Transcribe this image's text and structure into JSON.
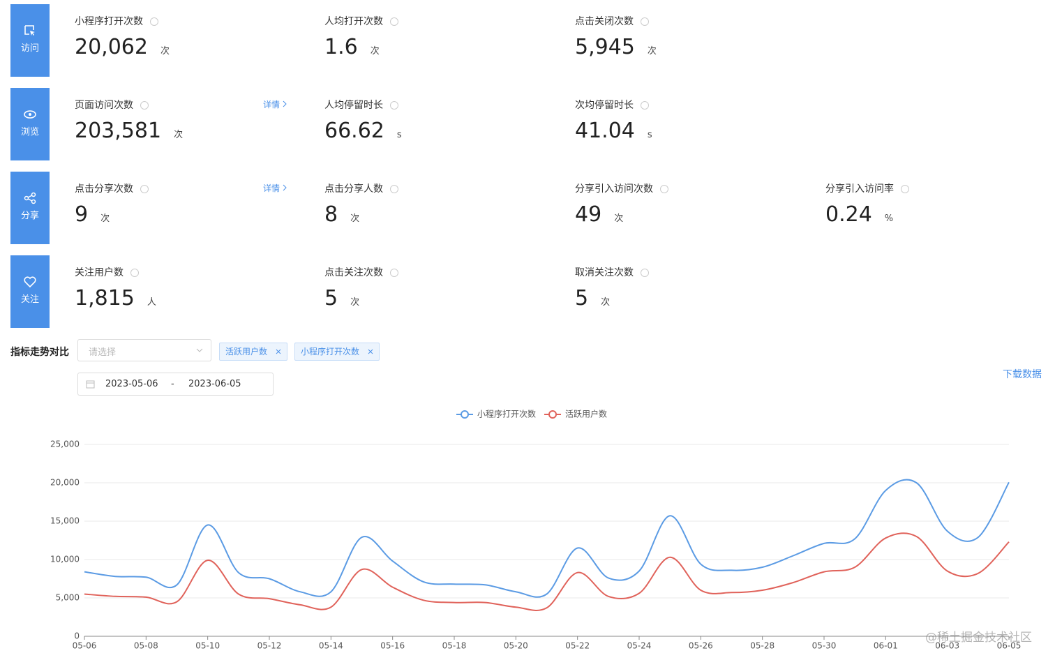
{
  "sections": [
    {
      "name": "访问",
      "metrics": [
        {
          "label": "小程序打开次数",
          "value": "20,062",
          "unit": "次"
        },
        {
          "label": "人均打开次数",
          "value": "1.6",
          "unit": "次"
        },
        {
          "label": "点击关闭次数",
          "value": "5,945",
          "unit": "次"
        }
      ]
    },
    {
      "name": "浏览",
      "metrics": [
        {
          "label": "页面访问次数",
          "value": "203,581",
          "unit": "次",
          "detail": "详情"
        },
        {
          "label": "人均停留时长",
          "value": "66.62",
          "unit": "s"
        },
        {
          "label": "次均停留时长",
          "value": "41.04",
          "unit": "s"
        }
      ]
    },
    {
      "name": "分享",
      "metrics": [
        {
          "label": "点击分享次数",
          "value": "9",
          "unit": "次",
          "detail": "详情"
        },
        {
          "label": "点击分享人数",
          "value": "8",
          "unit": "次"
        },
        {
          "label": "分享引入访问次数",
          "value": "49",
          "unit": "次"
        },
        {
          "label": "分享引入访问率",
          "value": "0.24",
          "unit": "%"
        }
      ]
    },
    {
      "name": "关注",
      "metrics": [
        {
          "label": "关注用户数",
          "value": "1,815",
          "unit": "人"
        },
        {
          "label": "点击关注次数",
          "value": "5",
          "unit": "次"
        },
        {
          "label": "取消关注次数",
          "value": "5",
          "unit": "次"
        }
      ]
    }
  ],
  "filter": {
    "label": "指标走势对比",
    "placeholder": "请选择",
    "tags": [
      "活跃用户数",
      "小程序打开次数"
    ],
    "date_start": "2023-05-06",
    "date_separator": "-",
    "date_end": "2023-06-05",
    "download": "下载数据"
  },
  "watermark": "@稀土掘金技术社区",
  "chart_data": {
    "type": "line",
    "categories": [
      "05-06",
      null,
      "05-08",
      null,
      "05-10",
      null,
      "05-12",
      null,
      "05-14",
      null,
      "05-16",
      null,
      "05-18",
      null,
      "05-20",
      null,
      "05-22",
      null,
      "05-24",
      null,
      "05-26",
      null,
      "05-28",
      null,
      "05-30",
      null,
      "06-01",
      null,
      "06-03",
      null,
      "06-05"
    ],
    "series": [
      {
        "name": "小程序打开次数",
        "color": "#5b9be4",
        "values": [
          8400,
          7800,
          7700,
          6700,
          14500,
          8300,
          7500,
          5800,
          5800,
          12900,
          9800,
          7100,
          6800,
          6700,
          5800,
          5500,
          11500,
          7600,
          8500,
          15700,
          9400,
          8600,
          9000,
          10500,
          12100,
          12700,
          19000,
          20000,
          13700,
          12900,
          20062
        ]
      },
      {
        "name": "活跃用户数",
        "color": "#e0625a",
        "values": [
          5500,
          5200,
          5100,
          4500,
          9900,
          5500,
          4900,
          4100,
          3800,
          8700,
          6400,
          4700,
          4400,
          4400,
          3800,
          3700,
          8300,
          5200,
          5600,
          10300,
          6000,
          5700,
          6000,
          7000,
          8400,
          9000,
          12800,
          13000,
          8500,
          8200,
          12300
        ]
      }
    ],
    "ylim": [
      0,
      25000
    ],
    "yticks": [
      0,
      {
        "value": 5000,
        "label": "5,000"
      },
      {
        "value": 10000,
        "label": "10,000"
      },
      {
        "value": 15000,
        "label": "15,000"
      },
      {
        "value": 20000,
        "label": "20,000"
      },
      {
        "value": 25000,
        "label": "25,000"
      }
    ],
    "grid": true,
    "smooth": true,
    "legend": "top"
  }
}
